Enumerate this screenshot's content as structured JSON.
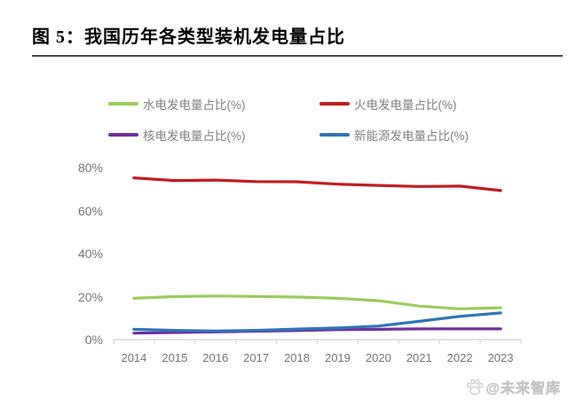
{
  "figure": {
    "title": "图 5：我国历年各类型装机发电量占比",
    "watermark": "@未来智库"
  },
  "chart_data": {
    "type": "line",
    "title": "图 5：我国历年各类型装机发电量占比",
    "x": [
      "2014",
      "2015",
      "2016",
      "2017",
      "2018",
      "2019",
      "2020",
      "2021",
      "2022",
      "2023"
    ],
    "xlabel": "",
    "ylabel": "",
    "ylim": [
      0,
      80
    ],
    "yticks": [
      "0%",
      "20%",
      "40%",
      "60%",
      "80%"
    ],
    "grid": false,
    "legend_position": "top",
    "axis_line_color": "#d9d9d9",
    "series": [
      {
        "id": "hydro",
        "name": "水电发电量占比(%)",
        "color": "#9BCB5A",
        "values": [
          19.2,
          20.0,
          20.3,
          20.1,
          19.8,
          19.2,
          18.1,
          15.6,
          14.3,
          14.8
        ]
      },
      {
        "id": "thermal",
        "name": "火电发电量占比(%)",
        "color": "#BF1D22",
        "values": [
          75.2,
          74.0,
          74.2,
          73.5,
          73.4,
          72.3,
          71.7,
          71.2,
          71.4,
          69.3
        ]
      },
      {
        "id": "nuclear",
        "name": "核电发电量占比(%)",
        "color": "#7030A0",
        "values": [
          3.0,
          3.3,
          3.6,
          3.9,
          4.2,
          4.6,
          4.8,
          5.0,
          5.0,
          5.0
        ]
      },
      {
        "id": "new-energy",
        "name": "新能源发电量占比(%)",
        "color": "#2E75B6",
        "values": [
          4.8,
          4.3,
          4.0,
          4.3,
          4.9,
          5.4,
          6.3,
          8.5,
          10.8,
          12.4
        ]
      }
    ]
  }
}
